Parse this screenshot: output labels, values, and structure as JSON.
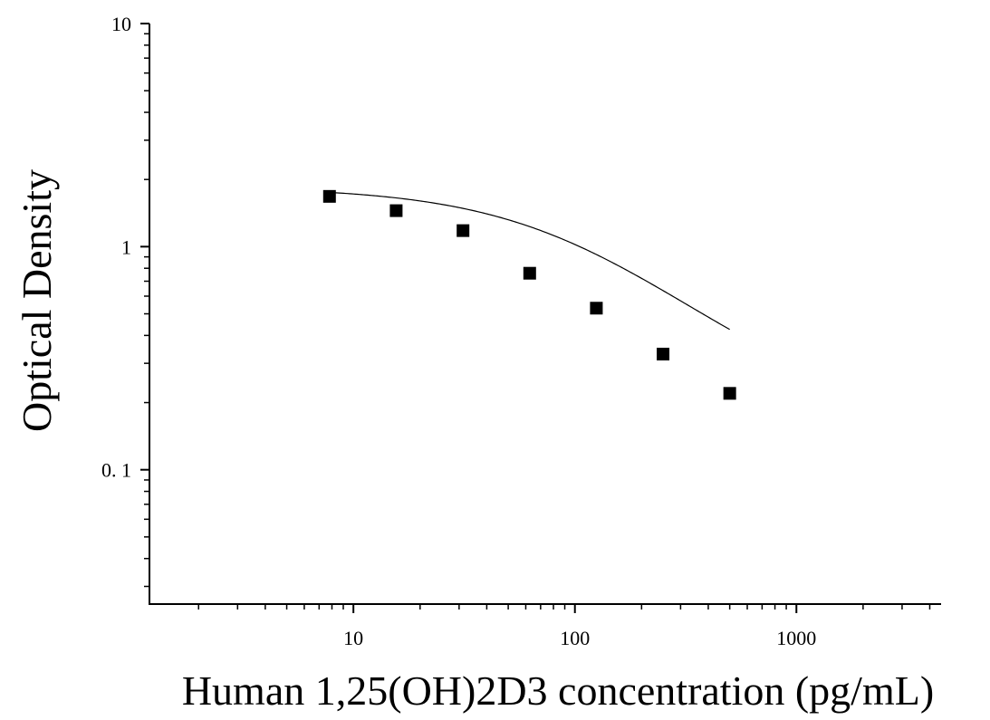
{
  "chart_data": {
    "type": "scatter",
    "title": "",
    "xlabel": "Human 1,25(OH)2D3 concentration (pg/mL)",
    "ylabel": "Optical Density",
    "xscale": "log",
    "yscale": "log",
    "xlim": [
      1.2,
      4500
    ],
    "ylim": [
      0.025,
      10
    ],
    "x_ticks": [
      {
        "value": 10,
        "label": "10"
      },
      {
        "value": 100,
        "label": "100"
      },
      {
        "value": 1000,
        "label": "1000"
      }
    ],
    "y_ticks": [
      {
        "value": 10,
        "label": "10"
      },
      {
        "value": 1,
        "label": "1"
      },
      {
        "value": 0.1,
        "label": "0. 1"
      }
    ],
    "grid": false,
    "legend": "none",
    "series": [
      {
        "marker": "square",
        "color": "#000000",
        "points": [
          {
            "x": 7.8,
            "y": 1.68
          },
          {
            "x": 15.6,
            "y": 1.45
          },
          {
            "x": 31.25,
            "y": 1.18
          },
          {
            "x": 62.5,
            "y": 0.76
          },
          {
            "x": 125,
            "y": 0.53
          },
          {
            "x": 250,
            "y": 0.33
          },
          {
            "x": 500,
            "y": 0.22
          }
        ]
      }
    ],
    "fit_curve": {
      "model": "4PL",
      "A": 1.85,
      "B": 1.07,
      "C": 104,
      "D": 0.16,
      "x_range": [
        7.8,
        500
      ],
      "color": "#000000"
    }
  }
}
